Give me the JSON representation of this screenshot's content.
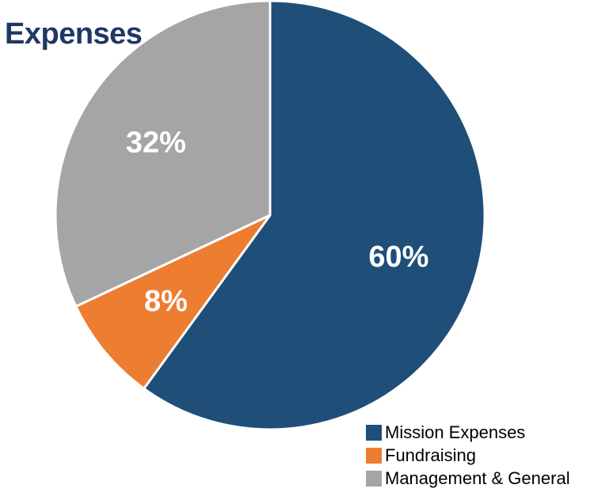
{
  "chart_data": {
    "type": "pie",
    "title": "Expenses",
    "categories": [
      "Mission Expenses",
      "Fundraising",
      "Management & General"
    ],
    "values": [
      60,
      8,
      32
    ],
    "labels": [
      "60%",
      "8%",
      "32%"
    ],
    "colors": [
      "#1f4e79",
      "#ed7d31",
      "#a5a5a5"
    ],
    "legend_position": "bottom-right"
  }
}
